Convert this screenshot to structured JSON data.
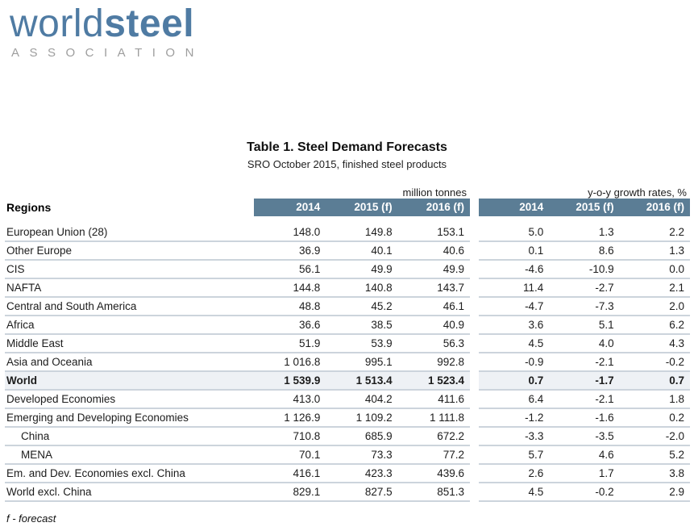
{
  "logo": {
    "word_light": "world",
    "word_bold": "steel",
    "subtext": "ASSOCIATION"
  },
  "header": {
    "title": "Table 1. Steel Demand Forecasts",
    "subtitle": "SRO October 2015, finished steel products"
  },
  "table": {
    "regions_label": "Regions",
    "group1_label": "million tonnes",
    "group2_label": "y-o-y growth rates, %",
    "col_headers": [
      "2014",
      "2015 (f)",
      "2016 (f)"
    ],
    "rows": [
      {
        "name": "European Union (28)",
        "mt": [
          "148.0",
          "149.8",
          "153.1"
        ],
        "yoy": [
          "5.0",
          "1.3",
          "2.2"
        ]
      },
      {
        "name": "Other Europe",
        "mt": [
          "36.9",
          "40.1",
          "40.6"
        ],
        "yoy": [
          "0.1",
          "8.6",
          "1.3"
        ]
      },
      {
        "name": "CIS",
        "mt": [
          "56.1",
          "49.9",
          "49.9"
        ],
        "yoy": [
          "-4.6",
          "-10.9",
          "0.0"
        ]
      },
      {
        "name": "NAFTA",
        "mt": [
          "144.8",
          "140.8",
          "143.7"
        ],
        "yoy": [
          "11.4",
          "-2.7",
          "2.1"
        ]
      },
      {
        "name": "Central and South America",
        "mt": [
          "48.8",
          "45.2",
          "46.1"
        ],
        "yoy": [
          "-4.7",
          "-7.3",
          "2.0"
        ]
      },
      {
        "name": "Africa",
        "mt": [
          "36.6",
          "38.5",
          "40.9"
        ],
        "yoy": [
          "3.6",
          "5.1",
          "6.2"
        ]
      },
      {
        "name": "Middle East",
        "mt": [
          "51.9",
          "53.9",
          "56.3"
        ],
        "yoy": [
          "4.5",
          "4.0",
          "4.3"
        ]
      },
      {
        "name": "Asia and Oceania",
        "mt": [
          "1 016.8",
          "995.1",
          "992.8"
        ],
        "yoy": [
          "-0.9",
          "-2.1",
          "-0.2"
        ]
      },
      {
        "name": "World",
        "bold": true,
        "shaded": true,
        "mt": [
          "1 539.9",
          "1 513.4",
          "1 523.4"
        ],
        "yoy": [
          "0.7",
          "-1.7",
          "0.7"
        ]
      },
      {
        "name": "Developed Economies",
        "mt": [
          "413.0",
          "404.2",
          "411.6"
        ],
        "yoy": [
          "6.4",
          "-2.1",
          "1.8"
        ]
      },
      {
        "name": "Emerging and Developing Economies",
        "mt": [
          "1 126.9",
          "1 109.2",
          "1 111.8"
        ],
        "yoy": [
          "-1.2",
          "-1.6",
          "0.2"
        ]
      },
      {
        "name": "China",
        "indent": true,
        "mt": [
          "710.8",
          "685.9",
          "672.2"
        ],
        "yoy": [
          "-3.3",
          "-3.5",
          "-2.0"
        ]
      },
      {
        "name": "MENA",
        "indent": true,
        "mt": [
          "70.1",
          "73.3",
          "77.2"
        ],
        "yoy": [
          "5.7",
          "4.6",
          "5.2"
        ]
      },
      {
        "name": "Em. and Dev. Economies excl. China",
        "mt": [
          "416.1",
          "423.3",
          "439.6"
        ],
        "yoy": [
          "2.6",
          "1.7",
          "3.8"
        ]
      },
      {
        "name": "World excl. China",
        "mt": [
          "829.1",
          "827.5",
          "851.3"
        ],
        "yoy": [
          "4.5",
          "-0.2",
          "2.9"
        ]
      }
    ]
  },
  "footnote": "f - forecast",
  "colors": {
    "header_bar": "#5b7d95",
    "logo_blue": "#4f7ba3",
    "logo_gray": "#9e9e9e",
    "row_line": "#ccd4dc",
    "world_row_shade": "#eef1f5"
  }
}
